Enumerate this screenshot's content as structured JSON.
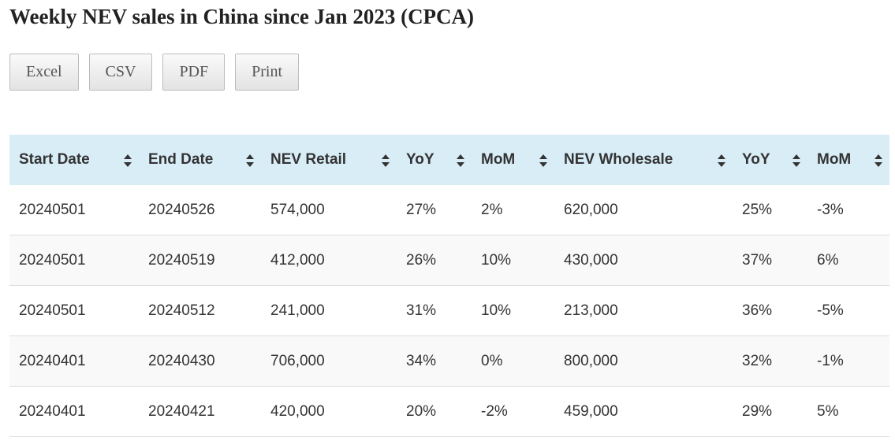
{
  "header": {
    "title": "Weekly NEV sales in China since Jan 2023 (CPCA)"
  },
  "buttons": [
    "Excel",
    "CSV",
    "PDF",
    "Print"
  ],
  "table": {
    "columns": [
      "Start Date",
      "End Date",
      "NEV Retail",
      "YoY",
      "MoM",
      "NEV Wholesale",
      "YoY",
      "MoM"
    ],
    "rows": [
      [
        "20240501",
        "20240526",
        "574,000",
        "27%",
        "2%",
        "620,000",
        "25%",
        "-3%"
      ],
      [
        "20240501",
        "20240519",
        "412,000",
        "26%",
        "10%",
        "430,000",
        "37%",
        "6%"
      ],
      [
        "20240501",
        "20240512",
        "241,000",
        "31%",
        "10%",
        "213,000",
        "36%",
        "-5%"
      ],
      [
        "20240401",
        "20240430",
        "706,000",
        "34%",
        "0%",
        "800,000",
        "32%",
        "-1%"
      ],
      [
        "20240401",
        "20240421",
        "420,000",
        "20%",
        "-2%",
        "459,000",
        "29%",
        "5%"
      ]
    ]
  }
}
